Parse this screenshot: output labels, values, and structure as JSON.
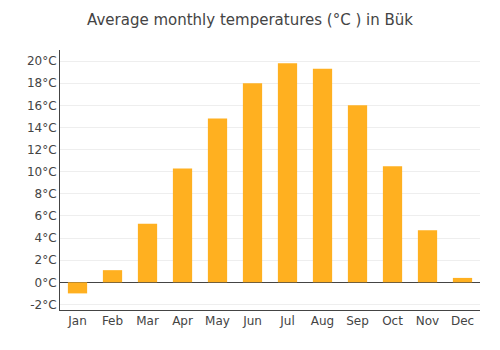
{
  "chart_data": {
    "type": "bar",
    "title": "Average monthly temperatures (°C ) in Bük",
    "categories": [
      "Jan",
      "Feb",
      "Mar",
      "Apr",
      "May",
      "Jun",
      "Jul",
      "Aug",
      "Sep",
      "Oct",
      "Nov",
      "Dec"
    ],
    "values": [
      -1.0,
      1.1,
      5.3,
      10.3,
      14.8,
      18.0,
      19.8,
      19.3,
      16.0,
      10.5,
      4.7,
      0.4
    ],
    "color": "#FFB020",
    "ylim": [
      -2.5,
      21
    ],
    "yticks": [
      {
        "value": -2,
        "label": "-2°C"
      },
      {
        "value": 0,
        "label": "0°C"
      },
      {
        "value": 2,
        "label": "2°C"
      },
      {
        "value": 4,
        "label": "4°C"
      },
      {
        "value": 6,
        "label": "6°C"
      },
      {
        "value": 8,
        "label": "8°C"
      },
      {
        "value": 10,
        "label": "10°C"
      },
      {
        "value": 12,
        "label": "12°C"
      },
      {
        "value": 14,
        "label": "14°C"
      },
      {
        "value": 16,
        "label": "16°C"
      },
      {
        "value": 18,
        "label": "18°C"
      },
      {
        "value": 20,
        "label": "20°C"
      }
    ],
    "grid": true
  }
}
